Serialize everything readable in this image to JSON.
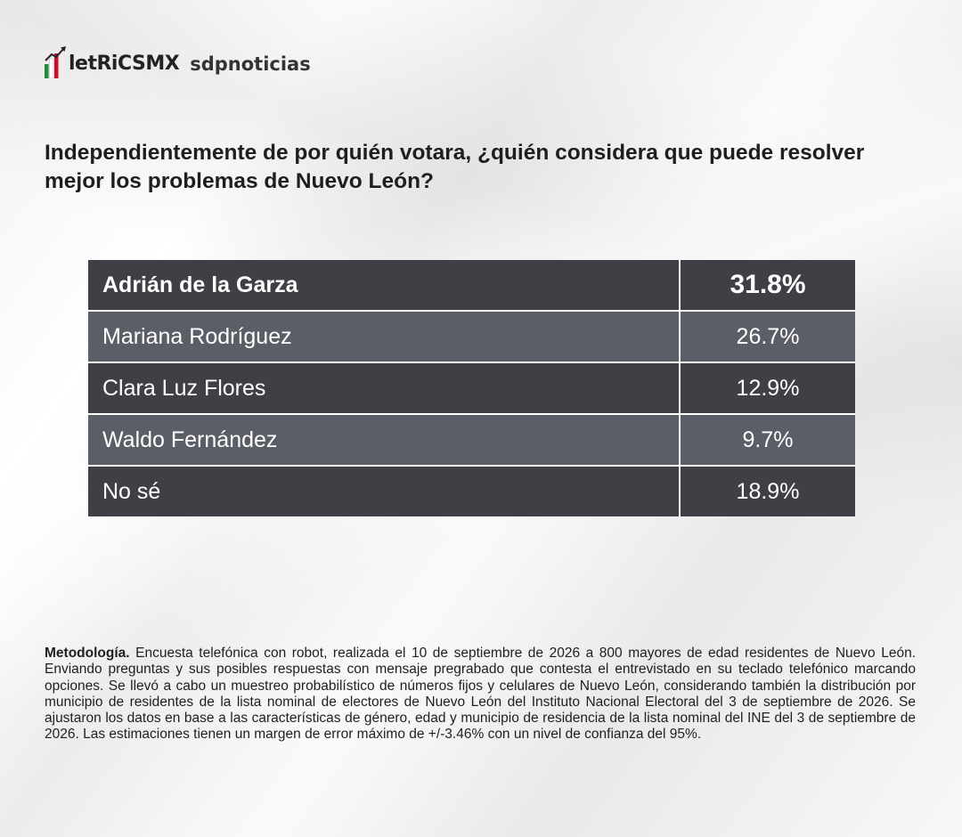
{
  "brand": {
    "metrics_logo": "MetricsMX",
    "metrics_logo_colors": [
      "#1f8a3a",
      "#ffffff",
      "#c8102e"
    ],
    "publisher_logo": "sdpnoticias"
  },
  "question": "Independientemente de por quién votara, ¿quién considera que puede resolver mejor los problemas de Nuevo León?",
  "chart_data": {
    "type": "table",
    "categories": [
      "Adrián de la Garza",
      "Mariana Rodríguez",
      "Clara Luz Flores",
      "Waldo Fernández",
      "No sé"
    ],
    "series": [
      {
        "values": [
          31.8,
          26.7,
          12.9,
          9.7,
          18.9
        ]
      }
    ],
    "value_labels": [
      "31.8%",
      "26.7%",
      "12.9%",
      "9.7%",
      "18.9%"
    ],
    "unit": "%",
    "row_colors": [
      "#3f3f45",
      "#5b5e66",
      "#3f3f45",
      "#5b5e66",
      "#3f3f45"
    ]
  },
  "methodology": {
    "lead": "Metodología.",
    "text": " Encuesta telefónica con robot, realizada el 10 de septiembre de 2026 a 800 mayores de edad residentes de Nuevo León. Enviando preguntas y sus posibles respuestas con mensaje pregrabado que contesta el entrevistado en su teclado telefónico marcando opciones. Se llevó a cabo un muestreo probabilístico de números fijos y celulares de Nuevo León, considerando también la distribución por municipio de residentes de la lista nominal de electores de Nuevo León del Instituto Nacional Electoral del 3 de septiembre de 2026. Se ajustaron los datos en base a las características de género, edad y municipio de residencia de la lista nominal del INE del 3 de septiembre de 2026. Las estimaciones tienen un margen de error máximo de +/-3.46% con un nivel de confianza del 95%."
  }
}
